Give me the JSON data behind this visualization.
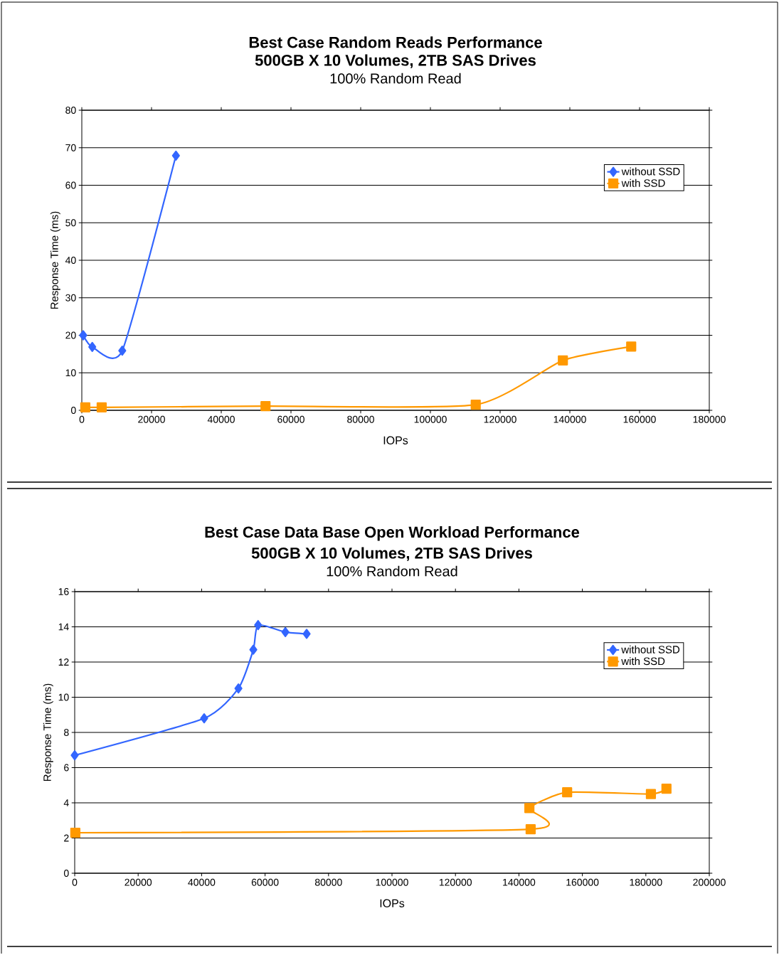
{
  "chart_data": [
    {
      "type": "line",
      "title": "Best Case Random Reads Performance",
      "subtitle": "500GB X 10 Volumes, 2TB SAS Drives",
      "annotations": [
        "100% Random Read"
      ],
      "xlabel": "IOPs",
      "ylabel": "Response Time (ms)",
      "xlim": [
        0,
        180000
      ],
      "xticks": [
        0,
        20000,
        40000,
        60000,
        80000,
        100000,
        120000,
        140000,
        160000,
        180000
      ],
      "ylim": [
        0,
        80
      ],
      "yticks": [
        0,
        10,
        20,
        30,
        40,
        50,
        60,
        70,
        80
      ],
      "grid": "y",
      "legend": "top right",
      "series": [
        {
          "name": "without SSD",
          "color": "#3366ff",
          "marker": "diamond",
          "x": [
            400,
            3000,
            11600,
            27000
          ],
          "values": [
            20,
            16.9,
            15.9,
            67.9
          ]
        },
        {
          "name": "with SSD",
          "color": "#ff9900",
          "marker": "square",
          "x": [
            1000,
            5700,
            52700,
            113000,
            138000,
            157600
          ],
          "values": [
            0.8,
            0.8,
            1.1,
            1.5,
            13.3,
            17
          ]
        }
      ]
    },
    {
      "type": "line",
      "title": "Best Case Data Base Open Workload Performance",
      "subtitle": "500GB X 10 Volumes, 2TB SAS Drives",
      "annotations": [
        "100% Random Read"
      ],
      "xlabel": "IOPs",
      "ylabel": "Response Time (ms)",
      "xlim": [
        0,
        200000
      ],
      "xticks": [
        0,
        20000,
        40000,
        60000,
        80000,
        100000,
        120000,
        140000,
        160000,
        180000,
        200000
      ],
      "ylim": [
        0,
        16
      ],
      "yticks": [
        0,
        2,
        4,
        6,
        8,
        10,
        12,
        14,
        16
      ],
      "grid": "y",
      "legend": "top right",
      "series": [
        {
          "name": "without SSD",
          "color": "#3366ff",
          "marker": "diamond",
          "x": [
            0,
            40800,
            51600,
            56300,
            57800,
            66400,
            73100
          ],
          "values": [
            6.7,
            8.8,
            10.5,
            12.7,
            14.1,
            13.7,
            13.6
          ]
        },
        {
          "name": "with SSD",
          "color": "#ff9900",
          "marker": "square",
          "x": [
            200,
            143700,
            143300,
            155200,
            181600,
            186500
          ],
          "values": [
            2.3,
            2.5,
            3.7,
            4.6,
            4.5,
            4.8
          ]
        }
      ]
    }
  ]
}
